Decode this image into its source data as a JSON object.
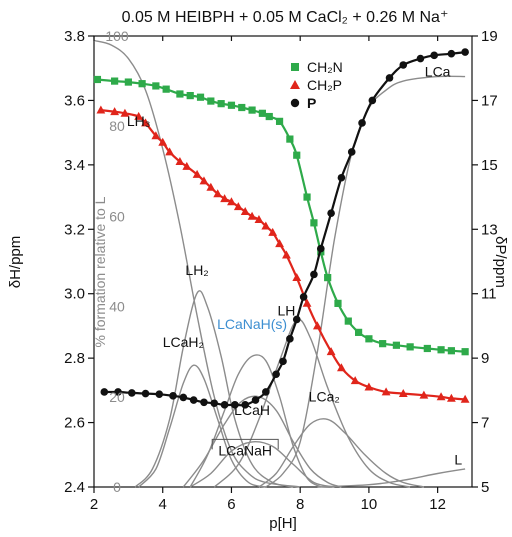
{
  "chart_data": {
    "type": "line",
    "title": "0.05 M HEIBPH + 0.05 M CaCl₂ + 0.26 M Na⁺",
    "xlabel": "p[H]",
    "ylabel_left": "δH/ppm",
    "ylabel_mid": "% formation relative to L",
    "ylabel_right": "δP/ppm",
    "xlim": [
      2,
      13
    ],
    "ylim_left": [
      2.4,
      3.8
    ],
    "ylim_right": [
      5,
      19
    ],
    "ylim_mid": [
      0,
      100
    ],
    "xticks": [
      "2",
      "4",
      "6",
      "8",
      "10",
      "12"
    ],
    "yticks_left": [
      "2.4",
      "2.6",
      "2.8",
      "3.0",
      "3.2",
      "3.4",
      "3.6",
      "3.8"
    ],
    "yticks_right": [
      "5",
      "7",
      "9",
      "11",
      "13",
      "15",
      "17",
      "19"
    ],
    "yticks_mid": [
      "0",
      "20",
      "40",
      "60",
      "80",
      "100"
    ],
    "colors": {
      "CH2N": "#2eaa4a",
      "CH2P": "#e0251b",
      "P": "#111111",
      "species": "#8c8c8c",
      "lcanah_label": "#3d8fd1"
    },
    "legend": {
      "placement": "top-center",
      "entries": [
        {
          "key": "CH2N",
          "label": "CH₂N",
          "marker": "square"
        },
        {
          "key": "CH2P",
          "label": "CH₂P",
          "marker": "triangle"
        },
        {
          "key": "P",
          "label": "P",
          "marker": "circle"
        }
      ]
    },
    "series": [
      {
        "name": "CH₂N",
        "axis": "left",
        "points": [
          [
            2.1,
            3.665
          ],
          [
            2.6,
            3.66
          ],
          [
            3.0,
            3.657
          ],
          [
            3.4,
            3.652
          ],
          [
            3.8,
            3.645
          ],
          [
            4.1,
            3.635
          ],
          [
            4.5,
            3.62
          ],
          [
            4.8,
            3.615
          ],
          [
            5.1,
            3.61
          ],
          [
            5.4,
            3.598
          ],
          [
            5.7,
            3.59
          ],
          [
            6.0,
            3.585
          ],
          [
            6.3,
            3.578
          ],
          [
            6.6,
            3.57
          ],
          [
            6.9,
            3.56
          ],
          [
            7.1,
            3.55
          ],
          [
            7.4,
            3.535
          ],
          [
            7.7,
            3.48
          ],
          [
            7.9,
            3.43
          ],
          [
            8.2,
            3.3
          ],
          [
            8.4,
            3.22
          ],
          [
            8.6,
            3.13
          ],
          [
            8.8,
            3.05
          ],
          [
            9.1,
            2.97
          ],
          [
            9.4,
            2.915
          ],
          [
            9.7,
            2.88
          ],
          [
            10.0,
            2.86
          ],
          [
            10.4,
            2.845
          ],
          [
            10.8,
            2.84
          ],
          [
            11.2,
            2.835
          ],
          [
            11.7,
            2.83
          ],
          [
            12.1,
            2.826
          ],
          [
            12.4,
            2.823
          ],
          [
            12.8,
            2.82
          ]
        ]
      },
      {
        "name": "CH₂P",
        "axis": "left",
        "points": [
          [
            2.2,
            3.57
          ],
          [
            2.6,
            3.565
          ],
          [
            2.9,
            3.56
          ],
          [
            3.3,
            3.55
          ],
          [
            3.5,
            3.53
          ],
          [
            3.8,
            3.49
          ],
          [
            4.0,
            3.47
          ],
          [
            4.2,
            3.44
          ],
          [
            4.5,
            3.41
          ],
          [
            4.7,
            3.395
          ],
          [
            5.0,
            3.37
          ],
          [
            5.2,
            3.35
          ],
          [
            5.4,
            3.33
          ],
          [
            5.6,
            3.31
          ],
          [
            5.8,
            3.295
          ],
          [
            6.0,
            3.285
          ],
          [
            6.2,
            3.27
          ],
          [
            6.4,
            3.255
          ],
          [
            6.6,
            3.24
          ],
          [
            6.8,
            3.23
          ],
          [
            7.0,
            3.21
          ],
          [
            7.2,
            3.19
          ],
          [
            7.4,
            3.155
          ],
          [
            7.6,
            3.12
          ],
          [
            7.9,
            3.05
          ],
          [
            8.2,
            2.97
          ],
          [
            8.5,
            2.9
          ],
          [
            8.9,
            2.82
          ],
          [
            9.2,
            2.77
          ],
          [
            9.6,
            2.73
          ],
          [
            10.0,
            2.71
          ],
          [
            10.5,
            2.695
          ],
          [
            11.0,
            2.69
          ],
          [
            11.6,
            2.685
          ],
          [
            12.1,
            2.68
          ],
          [
            12.4,
            2.675
          ],
          [
            12.8,
            2.672
          ]
        ]
      },
      {
        "name": "P",
        "axis": "right",
        "points": [
          [
            2.3,
            7.95
          ],
          [
            2.7,
            7.95
          ],
          [
            3.1,
            7.92
          ],
          [
            3.5,
            7.9
          ],
          [
            3.9,
            7.88
          ],
          [
            4.3,
            7.83
          ],
          [
            4.6,
            7.78
          ],
          [
            4.9,
            7.7
          ],
          [
            5.2,
            7.63
          ],
          [
            5.5,
            7.6
          ],
          [
            5.8,
            7.55
          ],
          [
            6.1,
            7.55
          ],
          [
            6.4,
            7.55
          ],
          [
            6.7,
            7.7
          ],
          [
            7.0,
            7.95
          ],
          [
            7.3,
            8.5
          ],
          [
            7.5,
            8.9
          ],
          [
            7.7,
            9.6
          ],
          [
            7.9,
            10.2
          ],
          [
            8.1,
            10.9
          ],
          [
            8.4,
            11.6
          ],
          [
            8.6,
            12.4
          ],
          [
            8.9,
            13.5
          ],
          [
            9.2,
            14.6
          ],
          [
            9.5,
            15.4
          ],
          [
            9.8,
            16.3
          ],
          [
            10.1,
            17.0
          ],
          [
            10.6,
            17.7
          ],
          [
            11.0,
            18.1
          ],
          [
            11.5,
            18.3
          ],
          [
            11.9,
            18.4
          ],
          [
            12.4,
            18.45
          ],
          [
            12.8,
            18.5
          ]
        ]
      }
    ],
    "species": [
      {
        "name": "LH₃",
        "axis": "mid",
        "label_at": [
          3.3,
          80
        ],
        "points": [
          [
            2,
            99
          ],
          [
            2.5,
            98
          ],
          [
            3,
            95
          ],
          [
            3.5,
            88
          ],
          [
            4,
            75
          ],
          [
            4.5,
            58
          ],
          [
            5,
            38
          ],
          [
            5.5,
            20
          ],
          [
            6,
            8
          ],
          [
            6.5,
            3
          ],
          [
            7,
            1
          ],
          [
            8,
            0
          ]
        ]
      },
      {
        "name": "LH₂",
        "axis": "mid",
        "label_at": [
          5.0,
          47
        ],
        "points": [
          [
            3.2,
            0
          ],
          [
            3.7,
            4
          ],
          [
            4.2,
            15
          ],
          [
            4.6,
            31
          ],
          [
            5.0,
            43
          ],
          [
            5.3,
            40
          ],
          [
            5.7,
            29
          ],
          [
            6.1,
            15
          ],
          [
            6.6,
            5
          ],
          [
            7.2,
            1
          ],
          [
            7.8,
            0
          ]
        ]
      },
      {
        "name": "LCaH₂",
        "axis": "mid",
        "label_at": [
          4.6,
          31
        ],
        "points": [
          [
            3.3,
            0
          ],
          [
            3.8,
            4
          ],
          [
            4.2,
            13
          ],
          [
            4.6,
            23
          ],
          [
            4.9,
            27
          ],
          [
            5.2,
            24
          ],
          [
            5.6,
            15
          ],
          [
            6.0,
            6
          ],
          [
            6.5,
            1
          ],
          [
            7,
            0
          ]
        ]
      },
      {
        "name": "LCaNaH(s)",
        "axis": "mid",
        "label_at": [
          6.6,
          35
        ],
        "points": [
          [
            4.8,
            0
          ],
          [
            5.3,
            7
          ],
          [
            5.8,
            17
          ],
          [
            6.2,
            25
          ],
          [
            6.6,
            29
          ],
          [
            7.0,
            28
          ],
          [
            7.4,
            20
          ],
          [
            7.8,
            9
          ],
          [
            8.2,
            2
          ],
          [
            8.6,
            0
          ]
        ]
      },
      {
        "name": "LH",
        "axis": "mid",
        "label_at": [
          7.6,
          38
        ],
        "points": [
          [
            5.5,
            0
          ],
          [
            6.2,
            5
          ],
          [
            6.8,
            15
          ],
          [
            7.4,
            28
          ],
          [
            7.9,
            37
          ],
          [
            8.3,
            33
          ],
          [
            8.8,
            22
          ],
          [
            9.4,
            11
          ],
          [
            10.0,
            4
          ],
          [
            10.6,
            1
          ],
          [
            11.2,
            0
          ]
        ]
      },
      {
        "name": "LCaH",
        "axis": "mid",
        "label_at": [
          6.6,
          16
        ],
        "points": [
          [
            4.6,
            0
          ],
          [
            5.2,
            6
          ],
          [
            5.8,
            14
          ],
          [
            6.3,
            19
          ],
          [
            6.8,
            20
          ],
          [
            7.3,
            17
          ],
          [
            7.8,
            10
          ],
          [
            8.3,
            4
          ],
          [
            8.8,
            1
          ],
          [
            9.2,
            0
          ]
        ]
      },
      {
        "name": "LCa₂",
        "axis": "mid",
        "label_at": [
          8.7,
          19
        ],
        "points": [
          [
            6.8,
            0
          ],
          [
            7.3,
            3
          ],
          [
            7.8,
            9
          ],
          [
            8.3,
            14
          ],
          [
            8.8,
            15
          ],
          [
            9.3,
            12
          ],
          [
            9.9,
            7
          ],
          [
            10.5,
            3
          ],
          [
            11.0,
            1
          ],
          [
            11.6,
            0
          ]
        ]
      },
      {
        "name": "LCaNaH",
        "axis": "mid",
        "label_at": [
          6.4,
          7
        ],
        "points": [
          [
            4.8,
            0
          ],
          [
            5.4,
            3
          ],
          [
            6.0,
            8
          ],
          [
            6.6,
            10
          ],
          [
            7.2,
            9
          ],
          [
            7.8,
            5
          ],
          [
            8.4,
            1
          ],
          [
            9,
            0
          ]
        ]
      },
      {
        "name": "LCa",
        "axis": "mid",
        "label_at": [
          12.0,
          91
        ],
        "points": [
          [
            7.0,
            0
          ],
          [
            7.5,
            3
          ],
          [
            8.0,
            10
          ],
          [
            8.5,
            30
          ],
          [
            9.0,
            55
          ],
          [
            9.5,
            74
          ],
          [
            10.0,
            84
          ],
          [
            10.5,
            88
          ],
          [
            11.0,
            90
          ],
          [
            12.0,
            91
          ],
          [
            12.8,
            91
          ]
        ]
      },
      {
        "name": "L",
        "axis": "mid",
        "label_at": [
          12.6,
          5
        ],
        "points": [
          [
            8.5,
            0
          ],
          [
            10,
            0.5
          ],
          [
            11,
            1.5
          ],
          [
            12,
            3
          ],
          [
            12.8,
            4
          ]
        ]
      }
    ]
  }
}
